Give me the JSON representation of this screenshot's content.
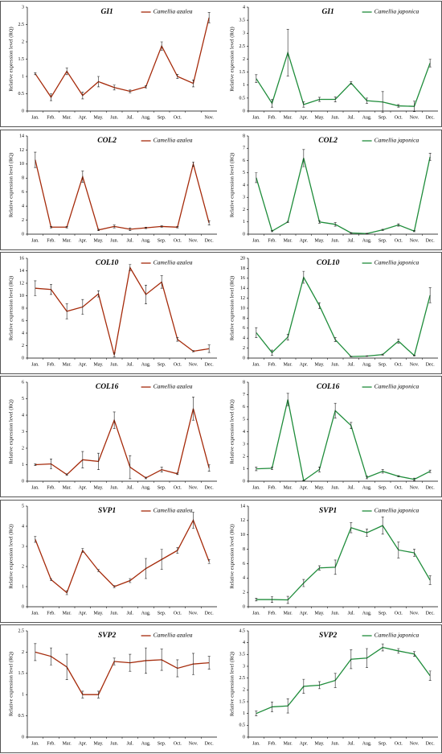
{
  "chart_data": [
    {
      "type": "line",
      "title": "GI1",
      "y_label": "Relative expression level (RQ)",
      "categories": [
        "Jan.",
        "Feb.",
        "Mar.",
        "Apr.",
        "May.",
        "Jun.",
        "Jul.",
        "Aug.",
        "Sep.",
        "Oct.",
        null,
        "Nov."
      ],
      "series": [
        {
          "name": "Camellia azalea",
          "color": "#a52a0a",
          "values": [
            1.08,
            0.4,
            1.15,
            0.45,
            0.85,
            0.68,
            0.57,
            0.7,
            1.88,
            1.0,
            0.8,
            2.7
          ],
          "errors": [
            0.03,
            0.1,
            0.1,
            0.1,
            0.15,
            0.07,
            0.04,
            0.03,
            0.12,
            0.06,
            0.1,
            0.15
          ]
        }
      ],
      "ylim": [
        0,
        3
      ],
      "yticks": [
        0,
        0.5,
        1,
        1.5,
        2,
        2.5,
        3
      ]
    },
    {
      "type": "line",
      "title": "GI1",
      "y_label": "Relative expression level (RQ)",
      "categories": [
        "Jan.",
        "Feb.",
        "Mar.",
        "Apr.",
        "May.",
        "Jun.",
        "Jul.",
        "Aug.",
        "Sep.",
        "Oct.",
        "Nov.",
        "Dec."
      ],
      "series": [
        {
          "name": "Camellia japonica",
          "color": "#1e8c3a",
          "values": [
            1.25,
            0.3,
            2.25,
            0.25,
            0.45,
            0.45,
            1.08,
            0.4,
            0.35,
            0.2,
            0.18,
            1.85
          ],
          "errors": [
            0.15,
            0.15,
            0.9,
            0.1,
            0.08,
            0.1,
            0.05,
            0.1,
            0.4,
            0.05,
            0.2,
            0.15
          ]
        }
      ],
      "ylim": [
        0,
        4
      ],
      "yticks": [
        0,
        0.5,
        1,
        1.5,
        2,
        2.5,
        3,
        3.5,
        4
      ]
    },
    {
      "type": "line",
      "title": "COL2",
      "y_label": "Relative expression level (RQ)",
      "categories": [
        "Jan.",
        "Feb.",
        "Mar.",
        "Apr.",
        "May.",
        "Jun.",
        "Jul.",
        "Aug.",
        "Sep.",
        "Oct.",
        "Nov.",
        "Dec."
      ],
      "series": [
        {
          "name": "Camellia azalea",
          "color": "#a52a0a",
          "values": [
            10.6,
            1,
            1,
            8.2,
            0.6,
            1.1,
            0.7,
            0.9,
            1.1,
            1.0,
            10,
            1.6
          ],
          "errors": [
            1.1,
            0.1,
            0.1,
            0.8,
            0.1,
            0.2,
            0.2,
            0.1,
            0.1,
            0.1,
            0.3,
            0.3
          ]
        }
      ],
      "ylim": [
        0,
        14
      ],
      "yticks": [
        0,
        2,
        4,
        6,
        8,
        10,
        12,
        14
      ]
    },
    {
      "type": "line",
      "title": "COL2",
      "y_label": "Relative expression level (RQ)",
      "categories": [
        "Jan.",
        "Feb.",
        "Mar.",
        "Apr.",
        "May.",
        "Jun.",
        "Jul.",
        "Aug.",
        "Sep.",
        "Oct.",
        "Nov.",
        "Dec."
      ],
      "series": [
        {
          "name": "Camellia japonica",
          "color": "#1e8c3a",
          "values": [
            4.6,
            0.25,
            1.0,
            6.2,
            1.0,
            0.8,
            0.1,
            0.05,
            0.35,
            0.75,
            0.25,
            6.3
          ],
          "errors": [
            0.4,
            0.05,
            0.05,
            0.7,
            0.1,
            0.15,
            0.03,
            0.02,
            0.05,
            0.1,
            0.05,
            0.3
          ]
        }
      ],
      "ylim": [
        0,
        8
      ],
      "yticks": [
        0,
        1,
        2,
        3,
        4,
        5,
        6,
        7,
        8
      ]
    },
    {
      "type": "line",
      "title": "COL10",
      "y_label": "Relative expression level (RQ)",
      "categories": [
        "Jan.",
        "Feb.",
        "Mar.",
        "Apr.",
        "May.",
        "Jun.",
        "Jul.",
        "Aug.",
        "Sep.",
        "Oct.",
        "Nov.",
        "Dec."
      ],
      "series": [
        {
          "name": "Camellia azalea",
          "color": "#a52a0a",
          "values": [
            11.2,
            11,
            7.5,
            8.2,
            10.3,
            0.5,
            14.5,
            10.2,
            12.2,
            3,
            1.1,
            1.5
          ],
          "errors": [
            1.2,
            0.8,
            1.2,
            1.2,
            0.5,
            0.3,
            0.5,
            1.5,
            1,
            0.3,
            0.1,
            0.6
          ]
        }
      ],
      "ylim": [
        0,
        16
      ],
      "yticks": [
        0,
        2,
        4,
        6,
        8,
        10,
        12,
        14,
        16
      ]
    },
    {
      "type": "line",
      "title": "COL10",
      "y_label": "Relative expression level (RQ)",
      "categories": [
        "Jan.",
        "Feb.",
        "Mar.",
        "Apr.",
        "May.",
        "Jun.",
        "Jul.",
        "Aug.",
        "Sep.",
        "Oct.",
        "Nov.",
        "Dec."
      ],
      "series": [
        {
          "name": "Camellia japonica",
          "color": "#1e8c3a",
          "values": [
            5.1,
            1.1,
            4.2,
            16.2,
            10.5,
            3.7,
            0.3,
            0.4,
            0.7,
            3.4,
            0.5,
            12.6
          ],
          "errors": [
            1,
            0.5,
            0.6,
            1.2,
            0.6,
            0.4,
            0.05,
            0.05,
            0.1,
            0.4,
            0.05,
            1.5
          ]
        }
      ],
      "ylim": [
        0,
        20
      ],
      "yticks": [
        0,
        2,
        4,
        6,
        8,
        10,
        12,
        14,
        16,
        18,
        20
      ]
    },
    {
      "type": "line",
      "title": "COL16",
      "y_label": "Relative expression level (RQ)",
      "categories": [
        "Jan.",
        "Feb.",
        "Mar.",
        "Apr.",
        "May.",
        "Jun.",
        "Jul.",
        "Aug.",
        "Sep.",
        "Oct.",
        "Nov.",
        "Dec."
      ],
      "series": [
        {
          "name": "Camellia azalea",
          "color": "#a52a0a",
          "values": [
            1.0,
            1.05,
            0.4,
            1.3,
            1.2,
            3.7,
            0.85,
            0.2,
            0.7,
            0.45,
            4.4,
            0.8
          ],
          "errors": [
            0.05,
            0.3,
            0.05,
            0.5,
            0.5,
            0.5,
            0.7,
            0.05,
            0.15,
            0.05,
            0.7,
            0.2
          ]
        }
      ],
      "ylim": [
        0,
        6
      ],
      "yticks": [
        0,
        1,
        2,
        3,
        4,
        5,
        6
      ]
    },
    {
      "type": "line",
      "title": "COL16",
      "y_label": "Relative expression level (RQ)",
      "categories": [
        "Jan.",
        "Feb.",
        "Mar.",
        "Apr.",
        "May.",
        "Jun.",
        "Jul.",
        "Aug.",
        "Sep.",
        "Oct.",
        "Nov.",
        "Dec."
      ],
      "series": [
        {
          "name": "Camellia japonica",
          "color": "#1e8c3a",
          "values": [
            1.0,
            1.05,
            6.6,
            0.05,
            0.95,
            5.7,
            4.5,
            0.3,
            0.8,
            0.4,
            0.15,
            0.8
          ],
          "errors": [
            0.15,
            0.1,
            0.5,
            0.02,
            0.2,
            0.6,
            0.25,
            0.1,
            0.15,
            0.05,
            0.1,
            0.1
          ]
        }
      ],
      "ylim": [
        0,
        8
      ],
      "yticks": [
        0,
        1,
        2,
        3,
        4,
        5,
        6,
        7,
        8
      ]
    },
    {
      "type": "line",
      "title": "SVP1",
      "y_label": "Relative expression level (RQ)",
      "categories": [
        "Jan.",
        "Feb.",
        "Mar.",
        "Apr.",
        "May.",
        "Jun.",
        "Jul.",
        "Aug.",
        "Sep.",
        "Oct.",
        "Nov.",
        "Dec."
      ],
      "series": [
        {
          "name": "Camellia azalea",
          "color": "#a52a0a",
          "values": [
            3.35,
            1.35,
            0.7,
            2.8,
            1.8,
            1.0,
            1.3,
            1.9,
            2.35,
            2.8,
            4.3,
            2.25
          ],
          "errors": [
            0.15,
            0.05,
            0.1,
            0.1,
            0.05,
            0.05,
            0.1,
            0.5,
            0.5,
            0.15,
            0.4,
            0.1
          ]
        }
      ],
      "ylim": [
        0,
        5
      ],
      "yticks": [
        0,
        1,
        2,
        3,
        4,
        5
      ]
    },
    {
      "type": "line",
      "title": "SVP1",
      "y_label": "Relative expression level (RQ)",
      "categories": [
        "Jan.",
        "Feb.",
        "Mar.",
        "Apr.",
        "May.",
        "Jun.",
        "Jul.",
        "Aug.",
        "Sep.",
        "Oct.",
        "Nov.",
        "Dec."
      ],
      "series": [
        {
          "name": "Camellia japonica",
          "color": "#1e8c3a",
          "values": [
            1.0,
            1.0,
            0.95,
            3.3,
            5.4,
            5.5,
            11.0,
            10.3,
            11.3,
            7.9,
            7.5,
            3.7
          ],
          "errors": [
            0.2,
            0.4,
            0.5,
            0.5,
            0.3,
            1,
            0.7,
            0.5,
            1.2,
            1.1,
            0.5,
            0.6
          ]
        }
      ],
      "ylim": [
        0,
        14
      ],
      "yticks": [
        0,
        2,
        4,
        6,
        8,
        10,
        12,
        14
      ]
    },
    {
      "type": "line",
      "title": "SVP2",
      "y_label": "Relative expression level (RQ)",
      "categories": [
        "Jan.",
        "Feb.",
        "Mar.",
        "Apr.",
        "May.",
        "Jun.",
        "Jul.",
        "Aug.",
        "Sep.",
        "Oct.",
        "Nov.",
        "Dec."
      ],
      "series": [
        {
          "name": "Camellia azalea",
          "color": "#a52a0a",
          "values": [
            2.0,
            1.9,
            1.65,
            1.0,
            1.0,
            1.78,
            1.75,
            1.8,
            1.82,
            1.62,
            1.72,
            1.75
          ],
          "errors": [
            0.2,
            0.2,
            0.3,
            0.08,
            0.08,
            0.08,
            0.2,
            0.3,
            0.25,
            0.2,
            0.25,
            0.15
          ]
        }
      ],
      "ylim": [
        0,
        2.5
      ],
      "yticks": [
        0,
        0.5,
        1,
        1.5,
        2,
        2.5
      ]
    },
    {
      "type": "line",
      "title": "SVP2",
      "y_label": "Relative expression level (RQ)",
      "categories": [
        "Jan.",
        "Feb.",
        "Mar.",
        "Apr.",
        "May.",
        "Jun.",
        "Jul.",
        "Aug.",
        "Sep.",
        "Oct.",
        "Nov.",
        "Dec."
      ],
      "series": [
        {
          "name": "Camellia japonica",
          "color": "#1e8c3a",
          "values": [
            1.0,
            1.28,
            1.32,
            2.15,
            2.2,
            2.4,
            3.3,
            3.35,
            3.8,
            3.65,
            3.52,
            2.6
          ],
          "errors": [
            0.1,
            0.2,
            0.3,
            0.3,
            0.15,
            0.3,
            0.4,
            0.4,
            0.15,
            0.1,
            0.1,
            0.2
          ]
        }
      ],
      "ylim": [
        0,
        4.5
      ],
      "yticks": [
        0,
        0.5,
        1,
        1.5,
        2,
        2.5,
        3,
        3.5,
        4,
        4.5
      ]
    }
  ]
}
